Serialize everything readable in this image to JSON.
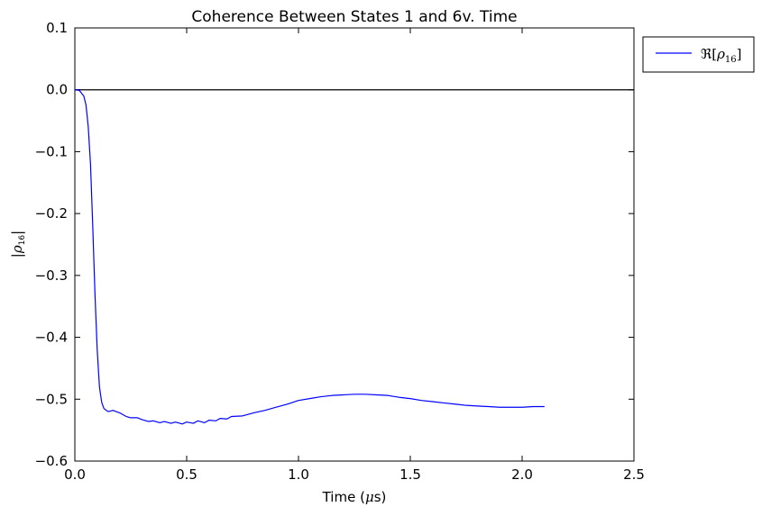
{
  "chart_data": {
    "type": "line",
    "title": "Coherence Between States 1 and 6v. Time",
    "xlabel": {
      "prefix": "Time (",
      "symbol": "μ",
      "suffix": "s)"
    },
    "ylabel": {
      "open": "|",
      "symbol": "ρ",
      "sub": "16",
      "close": "|"
    },
    "xlim": [
      0.0,
      2.5
    ],
    "ylim": [
      -0.6,
      0.1
    ],
    "xticks": [
      "0.0",
      "0.5",
      "1.0",
      "1.5",
      "2.0",
      "2.5"
    ],
    "yticks": [
      "0.1",
      "0.0",
      "−0.1",
      "−0.2",
      "−0.3",
      "−0.4",
      "−0.5",
      "−0.6"
    ],
    "reference_line": {
      "y": 0.0,
      "color": "#000000"
    },
    "legend": {
      "placement": "outside-upper-right",
      "text": {
        "re": "ℜ",
        "open": "[",
        "symbol": "ρ",
        "sub": "16",
        "close": "]"
      }
    },
    "series": [
      {
        "name": "ℜ[ρ16]",
        "color": "#0000ff",
        "x": [
          0.0,
          0.02,
          0.04,
          0.05,
          0.06,
          0.07,
          0.08,
          0.09,
          0.1,
          0.11,
          0.12,
          0.13,
          0.14,
          0.15,
          0.17,
          0.2,
          0.23,
          0.25,
          0.28,
          0.3,
          0.33,
          0.35,
          0.38,
          0.4,
          0.43,
          0.45,
          0.48,
          0.5,
          0.53,
          0.55,
          0.58,
          0.6,
          0.63,
          0.65,
          0.68,
          0.7,
          0.75,
          0.8,
          0.85,
          0.9,
          0.95,
          1.0,
          1.05,
          1.1,
          1.15,
          1.2,
          1.25,
          1.3,
          1.35,
          1.4,
          1.45,
          1.5,
          1.55,
          1.6,
          1.65,
          1.7,
          1.75,
          1.8,
          1.85,
          1.9,
          1.95,
          2.0,
          2.05,
          2.1
        ],
        "y": [
          0.0,
          -0.001,
          -0.01,
          -0.025,
          -0.06,
          -0.12,
          -0.22,
          -0.33,
          -0.42,
          -0.48,
          -0.505,
          -0.515,
          -0.518,
          -0.52,
          -0.518,
          -0.522,
          -0.528,
          -0.53,
          -0.53,
          -0.533,
          -0.536,
          -0.535,
          -0.538,
          -0.536,
          -0.539,
          -0.537,
          -0.54,
          -0.537,
          -0.539,
          -0.535,
          -0.538,
          -0.534,
          -0.535,
          -0.531,
          -0.532,
          -0.528,
          -0.527,
          -0.522,
          -0.518,
          -0.513,
          -0.508,
          -0.502,
          -0.499,
          -0.496,
          -0.494,
          -0.493,
          -0.492,
          -0.492,
          -0.493,
          -0.494,
          -0.497,
          -0.499,
          -0.502,
          -0.504,
          -0.506,
          -0.508,
          -0.51,
          -0.511,
          -0.512,
          -0.513,
          -0.513,
          -0.513,
          -0.512,
          -0.512
        ]
      }
    ]
  }
}
